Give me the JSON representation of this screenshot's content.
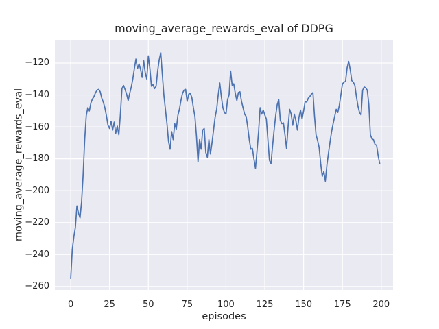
{
  "figure": {
    "background": "#ffffff",
    "plot_background": "#eaeaf2",
    "grid_color": "#ffffff",
    "text_color": "#262626"
  },
  "chart_data": {
    "type": "line",
    "title": "moving_average_rewards_eval of DDPG",
    "xlabel": "episodes",
    "ylabel": "moving_average_rewards_eval",
    "legend": "none",
    "grid": true,
    "line_color": "#4c72b0",
    "line_width": 1.7,
    "xlim": [
      -10.2,
      207.6
    ],
    "ylim": [
      -262.2,
      -105.4
    ],
    "x_tick_values": [
      0,
      25,
      50,
      75,
      100,
      125,
      150,
      175,
      200
    ],
    "x_tick_labels": [
      "0",
      "25",
      "50",
      "75",
      "100",
      "125",
      "150",
      "175",
      "200"
    ],
    "y_tick_values": [
      -120,
      -140,
      -160,
      -180,
      -200,
      -220,
      -240,
      -260
    ],
    "y_tick_labels": [
      "−120",
      "−140",
      "−160",
      "−180",
      "−200",
      "−220",
      "−240",
      "−260"
    ],
    "x_start": 0,
    "x_step": 1,
    "series": [
      {
        "name": "moving_average_rewards_eval",
        "values": [
          -255,
          -237,
          -229,
          -223,
          -209.5,
          -214,
          -217,
          -207,
          -190,
          -168,
          -153,
          -148,
          -150,
          -145,
          -142.5,
          -141,
          -138.5,
          -137,
          -136.5,
          -138,
          -142,
          -144.5,
          -148,
          -153,
          -159,
          -161,
          -156.5,
          -162,
          -157,
          -164,
          -159.5,
          -165,
          -152,
          -136,
          -134,
          -136.5,
          -139.5,
          -143.5,
          -139,
          -135,
          -130,
          -123.5,
          -117.5,
          -123.5,
          -120.5,
          -124,
          -129,
          -118.5,
          -126,
          -130,
          -115.5,
          -123.5,
          -134.5,
          -133.5,
          -136,
          -134.5,
          -125,
          -118,
          -113.5,
          -127,
          -140,
          -149,
          -158,
          -169,
          -174,
          -163,
          -168,
          -158,
          -161.5,
          -153,
          -149,
          -143.5,
          -139,
          -137,
          -136.5,
          -144,
          -139.5,
          -139,
          -141.5,
          -148,
          -153.5,
          -166,
          -182,
          -168,
          -174,
          -162,
          -161,
          -176,
          -179,
          -168,
          -177,
          -170,
          -162,
          -154,
          -149,
          -140,
          -132.5,
          -141,
          -148,
          -151,
          -152,
          -143,
          -140,
          -125,
          -134,
          -133,
          -139,
          -143.5,
          -138.5,
          -138,
          -144,
          -148,
          -152,
          -153.5,
          -160,
          -168,
          -174,
          -173.5,
          -180,
          -186,
          -175,
          -163,
          -148,
          -152,
          -149.5,
          -152.5,
          -155,
          -168,
          -181,
          -183,
          -172,
          -162,
          -153,
          -146,
          -143,
          -156,
          -158,
          -157.5,
          -165,
          -173.5,
          -160,
          -149,
          -152,
          -159,
          -152,
          -156,
          -162,
          -154,
          -149.5,
          -155,
          -150,
          -144,
          -144.5,
          -142,
          -141,
          -139.5,
          -138.5,
          -153,
          -165,
          -168.5,
          -173,
          -183,
          -191,
          -188,
          -194,
          -184,
          -176.5,
          -169.5,
          -163,
          -158,
          -153.5,
          -149,
          -151,
          -146.5,
          -140,
          -133,
          -132,
          -131.5,
          -123,
          -119,
          -124,
          -131,
          -132,
          -134,
          -141,
          -147,
          -151,
          -152.5,
          -137,
          -135,
          -135.5,
          -137,
          -146,
          -165,
          -167.5,
          -168,
          -171,
          -171.5,
          -178,
          -183
        ]
      }
    ]
  }
}
